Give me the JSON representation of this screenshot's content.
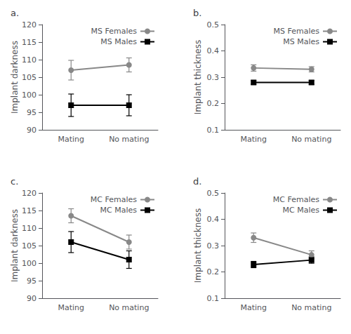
{
  "chart_data": [
    {
      "type": "line",
      "title": "a.",
      "ylabel": "Implant darkness",
      "categories": [
        "Mating",
        "No mating"
      ],
      "ylim": [
        90,
        120
      ],
      "yticks": [
        90,
        95,
        100,
        105,
        110,
        115,
        120
      ],
      "grid": false,
      "legend": "upper right",
      "series": [
        {
          "name": "MS Females",
          "color": "#888888",
          "marker": "circle",
          "values": [
            107.0,
            108.5
          ],
          "errors": [
            2.8,
            2.0
          ]
        },
        {
          "name": "MS Males",
          "color": "#000000",
          "marker": "square",
          "values": [
            97.0,
            97.0
          ],
          "errors": [
            3.2,
            3.0
          ]
        }
      ]
    },
    {
      "type": "line",
      "title": "b.",
      "ylabel": "Implant thickness",
      "categories": [
        "Mating",
        "No mating"
      ],
      "ylim": [
        0.1,
        0.5
      ],
      "yticks": [
        0.1,
        0.2,
        0.3,
        0.4,
        0.5
      ],
      "grid": false,
      "legend": "upper right",
      "series": [
        {
          "name": "MS Females",
          "color": "#888888",
          "marker": "circle",
          "values": [
            0.335,
            0.33
          ],
          "errors": [
            0.012,
            0.01
          ]
        },
        {
          "name": "MS Males",
          "color": "#000000",
          "marker": "square",
          "values": [
            0.28,
            0.28
          ],
          "errors": [
            0.007,
            0.007
          ]
        }
      ]
    },
    {
      "type": "line",
      "title": "c.",
      "ylabel": "Implant darkness",
      "categories": [
        "Mating",
        "No mating"
      ],
      "ylim": [
        90,
        120
      ],
      "yticks": [
        90,
        95,
        100,
        105,
        110,
        115,
        120
      ],
      "grid": false,
      "legend": "upper right",
      "series": [
        {
          "name": "MC Females",
          "color": "#888888",
          "marker": "circle",
          "values": [
            113.5,
            106.0
          ],
          "errors": [
            2.0,
            2.0
          ]
        },
        {
          "name": "MC Males",
          "color": "#000000",
          "marker": "square",
          "values": [
            106.0,
            101.0
          ],
          "errors": [
            3.0,
            2.5
          ]
        }
      ]
    },
    {
      "type": "line",
      "title": "d.",
      "ylabel": "Implant thickness",
      "categories": [
        "Mating",
        "No mating"
      ],
      "ylim": [
        0.1,
        0.5
      ],
      "yticks": [
        0.1,
        0.2,
        0.3,
        0.4,
        0.5
      ],
      "grid": false,
      "legend": "upper right",
      "series": [
        {
          "name": "MC Females",
          "color": "#888888",
          "marker": "circle",
          "values": [
            0.33,
            0.265
          ],
          "errors": [
            0.018,
            0.015
          ]
        },
        {
          "name": "MC Males",
          "color": "#000000",
          "marker": "square",
          "values": [
            0.228,
            0.245
          ],
          "errors": [
            0.012,
            0.012
          ]
        }
      ]
    }
  ]
}
